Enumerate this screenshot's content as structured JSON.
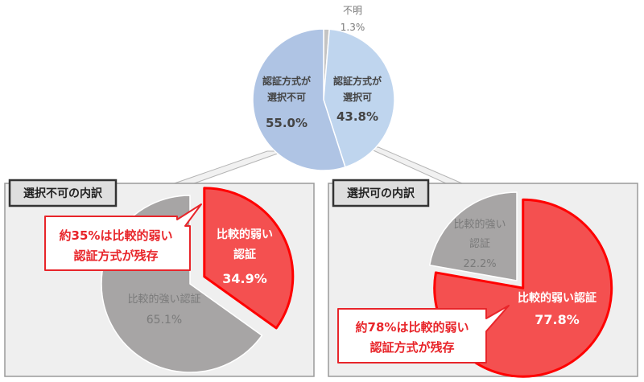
{
  "chart_data": [
    {
      "type": "pie",
      "slices": [
        {
          "label_lines": [
            "不明"
          ],
          "value": 1.3,
          "value_text": "1.3%",
          "color": "#c4c4c4"
        },
        {
          "label_lines": [
            "認証方式が",
            "選択可"
          ],
          "value": 43.8,
          "value_text": "43.8%",
          "color": "#bfd5ee"
        },
        {
          "label_lines": [
            "認証方式が",
            "選択不可"
          ],
          "value": 55.0,
          "value_text": "55.0%",
          "color": "#afc4e4"
        }
      ]
    },
    {
      "type": "pie",
      "title": "選択不可の内訳",
      "slices": [
        {
          "label_lines": [
            "比較的弱い",
            "認証"
          ],
          "value": 34.9,
          "value_text": "34.9%",
          "color": "#f45050",
          "highlight": true
        },
        {
          "label_lines": [
            "比較的強い認証"
          ],
          "value": 65.1,
          "value_text": "65.1%",
          "color": "#a7a5a5"
        }
      ],
      "callout_lines": [
        "約35%は比較的弱い",
        "認証方式が残存"
      ]
    },
    {
      "type": "pie",
      "title": "選択可の内訳",
      "slices": [
        {
          "label_lines": [
            "比較的弱い認証"
          ],
          "value": 77.8,
          "value_text": "77.8%",
          "color": "#f45050",
          "highlight": true
        },
        {
          "label_lines": [
            "比較的強い",
            "認証"
          ],
          "value": 22.2,
          "value_text": "22.2%",
          "color": "#a7a5a5"
        }
      ],
      "callout_lines": [
        "約78%は比較的弱い",
        "認証方式が残存"
      ]
    }
  ],
  "colors": {
    "panel_fill": "#efefef",
    "panel_border": "#9a9a9a",
    "title_fill": "#dedede",
    "callout_border": "#e8252a",
    "highlight_border": "#ff0000"
  }
}
